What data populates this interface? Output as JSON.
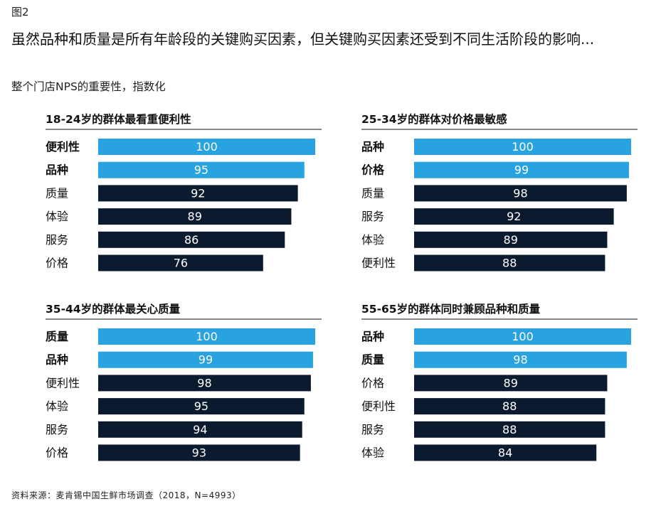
{
  "figure_label": "图2",
  "headline": "虽然品种和质量是所有年龄段的关键购买因素，但关键购买因素还受到不同生活阶段的影响...",
  "subtitle": "整个门店NPS的重要性，指数化",
  "footnote": "资料来源：麦肯锡中国生鲜市场调查（2018，N=4993）",
  "colors": {
    "highlight": "#29a3e0",
    "dark": "#0b1a2e",
    "value_text": "#ffffff"
  },
  "chart_data": [
    {
      "type": "bar",
      "orientation": "horizontal",
      "title": "18-24岁的群体最看重便利性",
      "categories": [
        "便利性",
        "品种",
        "质量",
        "体验",
        "服务",
        "价格"
      ],
      "values": [
        100,
        95,
        92,
        89,
        86,
        76
      ],
      "highlighted": [
        true,
        true,
        false,
        false,
        false,
        false
      ],
      "xlim": [
        0,
        100
      ]
    },
    {
      "type": "bar",
      "orientation": "horizontal",
      "title": "25-34岁的群体对价格最敏感",
      "categories": [
        "品种",
        "价格",
        "质量",
        "服务",
        "体验",
        "便利性"
      ],
      "values": [
        100,
        99,
        98,
        92,
        89,
        88
      ],
      "highlighted": [
        true,
        true,
        false,
        false,
        false,
        false
      ],
      "xlim": [
        0,
        100
      ]
    },
    {
      "type": "bar",
      "orientation": "horizontal",
      "title": "35-44岁的群体最关心质量",
      "categories": [
        "质量",
        "品种",
        "便利性",
        "体验",
        "服务",
        "价格"
      ],
      "values": [
        100,
        99,
        98,
        95,
        94,
        93
      ],
      "highlighted": [
        true,
        true,
        false,
        false,
        false,
        false
      ],
      "xlim": [
        0,
        100
      ]
    },
    {
      "type": "bar",
      "orientation": "horizontal",
      "title": "55-65岁的群体同时兼顾品种和质量",
      "categories": [
        "品种",
        "质量",
        "价格",
        "便利性",
        "服务",
        "体验"
      ],
      "values": [
        100,
        98,
        89,
        88,
        88,
        84
      ],
      "highlighted": [
        true,
        true,
        false,
        false,
        false,
        false
      ],
      "xlim": [
        0,
        100
      ]
    }
  ]
}
